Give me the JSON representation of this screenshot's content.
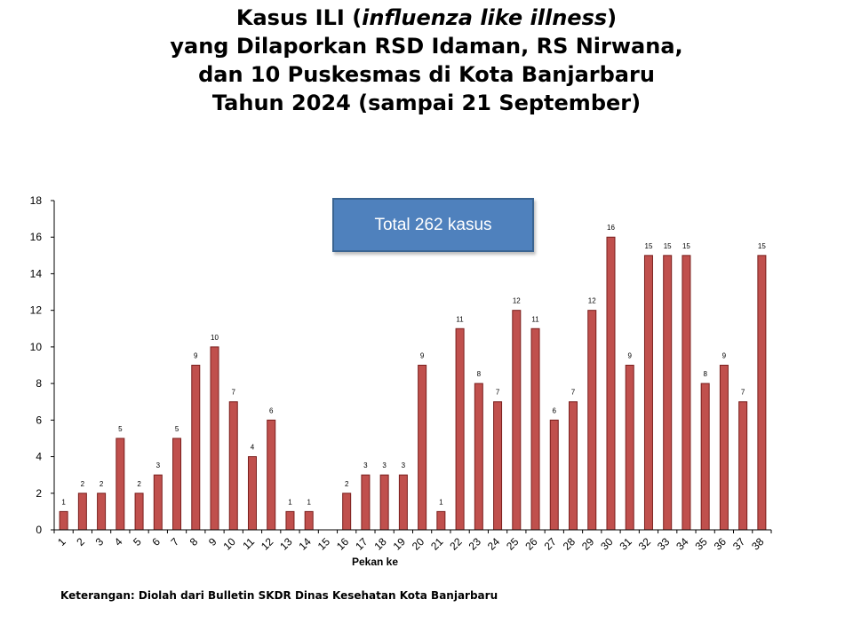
{
  "chart_data": {
    "type": "bar",
    "title_lines": [
      "Kasus ILI (",
      "influenza like illness",
      ")",
      "yang Dilaporkan RSD Idaman, RS Nirwana,",
      "dan 10 Puskesmas di Kota Banjarbaru",
      "Tahun 2024 (sampai 21 September)"
    ],
    "xlabel": "Pekan ke",
    "ylabel": "",
    "ylim": [
      0,
      18
    ],
    "yticks": [
      0,
      2,
      4,
      6,
      8,
      10,
      12,
      14,
      16,
      18
    ],
    "categories": [
      "1",
      "2",
      "3",
      "4",
      "5",
      "6",
      "7",
      "8",
      "9",
      "10",
      "11",
      "12",
      "13",
      "14",
      "15",
      "16",
      "17",
      "18",
      "19",
      "20",
      "21",
      "22",
      "23",
      "24",
      "25",
      "26",
      "27",
      "28",
      "29",
      "30",
      "31",
      "32",
      "33",
      "34",
      "35",
      "36",
      "37",
      "38"
    ],
    "values": [
      1,
      2,
      2,
      5,
      2,
      3,
      5,
      9,
      10,
      7,
      4,
      6,
      1,
      1,
      0,
      2,
      3,
      3,
      3,
      9,
      1,
      11,
      8,
      7,
      12,
      11,
      6,
      7,
      12,
      16,
      9,
      15,
      15,
      15,
      8,
      9,
      7,
      15
    ],
    "data_labels": [
      "1",
      "2",
      "2",
      "5",
      "2",
      "3",
      "5",
      "9",
      "10",
      "7",
      "4",
      "6",
      "1",
      "1",
      "",
      "2",
      "3",
      "3",
      "3",
      "9",
      "1",
      "11",
      "8",
      "7",
      "12",
      "11",
      "6",
      "7",
      "12",
      "16",
      "9",
      "15",
      "15",
      "15",
      "8",
      "9",
      "7",
      "15"
    ],
    "bar_color": "#c0504d",
    "bar_edge_color": "#7a1f1d",
    "grid": false,
    "annotation": "Total 262 kasus",
    "annotation_color": "#4f81bd"
  },
  "footnote": "Keterangan: Diolah dari Bulletin SKDR Dinas Kesehatan Kota Banjarbaru"
}
